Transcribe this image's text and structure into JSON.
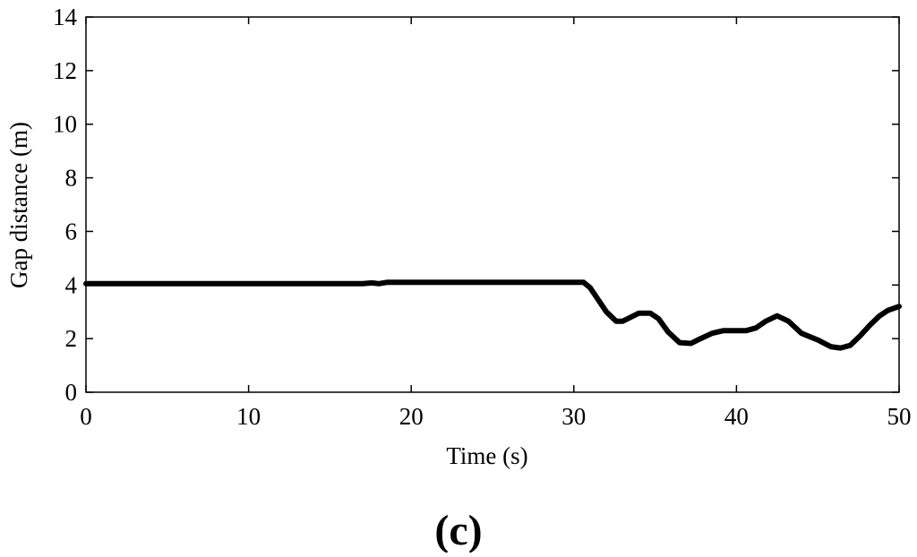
{
  "chart_data": {
    "type": "line",
    "title": "",
    "xlabel": "Time (s)",
    "ylabel": "Gap distance (m)",
    "xlim": [
      0,
      50
    ],
    "ylim": [
      0,
      14
    ],
    "xticks": [
      0,
      10,
      20,
      30,
      40,
      50
    ],
    "yticks": [
      0,
      2,
      4,
      6,
      8,
      10,
      12,
      14
    ],
    "grid": false,
    "series": [
      {
        "color": "#000000",
        "x": [
          0,
          5,
          10,
          15,
          17,
          17.6,
          18,
          18.5,
          19,
          25,
          30,
          30.6,
          31,
          31.5,
          32,
          32.6,
          33,
          33.5,
          34,
          34.7,
          35.2,
          35.8,
          36.5,
          37.2,
          37.8,
          38.5,
          39.2,
          40,
          40.6,
          41.2,
          41.8,
          42.5,
          43.2,
          44,
          45,
          45.8,
          46.4,
          47,
          47.6,
          48.2,
          48.8,
          49.3,
          50
        ],
        "y": [
          4.05,
          4.05,
          4.05,
          4.05,
          4.05,
          4.08,
          4.05,
          4.1,
          4.1,
          4.1,
          4.1,
          4.1,
          3.9,
          3.45,
          3.0,
          2.65,
          2.65,
          2.8,
          2.95,
          2.95,
          2.75,
          2.25,
          1.85,
          1.82,
          2.0,
          2.2,
          2.3,
          2.3,
          2.3,
          2.4,
          2.65,
          2.85,
          2.65,
          2.2,
          1.95,
          1.7,
          1.65,
          1.75,
          2.1,
          2.5,
          2.85,
          3.05,
          3.2
        ]
      }
    ]
  },
  "panel_label": "(c)"
}
